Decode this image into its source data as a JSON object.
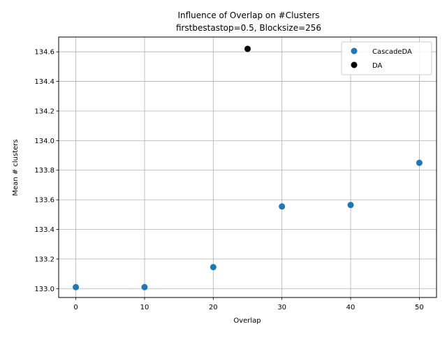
{
  "chart_data": {
    "type": "scatter",
    "title": "Influence of Overlap on #Clusters",
    "subtitle": "firstbestastop=0.5, Blocksize=256",
    "xlabel": "Overlap",
    "ylabel": "Mean # clusters",
    "xlim": [
      -2.5,
      52.5
    ],
    "ylim": [
      132.94,
      134.7
    ],
    "x_ticks": [
      0,
      10,
      20,
      30,
      40,
      50
    ],
    "y_ticks": [
      133.0,
      133.2,
      133.4,
      133.6,
      133.8,
      134.0,
      134.2,
      134.4,
      134.6
    ],
    "x_tick_labels": [
      "0",
      "10",
      "20",
      "30",
      "40",
      "50"
    ],
    "y_tick_labels": [
      "133.0",
      "133.2",
      "133.4",
      "133.6",
      "133.8",
      "134.0",
      "134.2",
      "134.4",
      "134.6"
    ],
    "grid": true,
    "legend_position": "top-right",
    "series": [
      {
        "name": "CascadeDA",
        "color": "#1f77b4",
        "points": [
          {
            "x": 0,
            "y": 133.01
          },
          {
            "x": 10,
            "y": 133.01
          },
          {
            "x": 20,
            "y": 133.145
          },
          {
            "x": 30,
            "y": 133.555
          },
          {
            "x": 40,
            "y": 133.565
          },
          {
            "x": 50,
            "y": 133.85
          }
        ]
      },
      {
        "name": "DA",
        "color": "#000000",
        "points": [
          {
            "x": 25,
            "y": 134.62
          }
        ]
      }
    ]
  }
}
